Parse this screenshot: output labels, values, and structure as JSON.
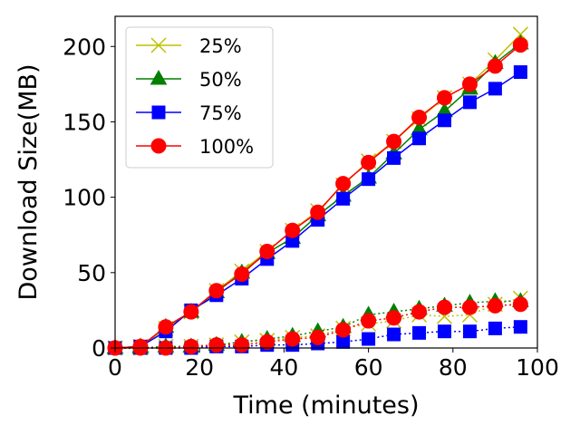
{
  "chart_data": {
    "type": "line",
    "title": "",
    "xlabel": "Time (minutes)",
    "ylabel": "Download Size(MB)",
    "xlim": [
      0,
      100
    ],
    "ylim": [
      0,
      220
    ],
    "xticks": [
      0,
      20,
      40,
      60,
      80,
      100
    ],
    "yticks": [
      0,
      50,
      100,
      150,
      200
    ],
    "grid": false,
    "legend_position": "top-left",
    "x": [
      0,
      6,
      12,
      18,
      24,
      30,
      36,
      42,
      48,
      54,
      60,
      66,
      72,
      78,
      84,
      90,
      96
    ],
    "series": [
      {
        "name": "25%",
        "color": "#bfbf00",
        "marker": "x",
        "values": [
          0,
          1,
          13,
          24,
          38,
          51,
          64,
          78,
          91,
          108,
          124,
          137,
          152,
          166,
          175,
          191,
          208
        ],
        "secondary": [
          0,
          0,
          1,
          1,
          2,
          4,
          5,
          7,
          8,
          13,
          16,
          18,
          22,
          21,
          22,
          29,
          33
        ]
      },
      {
        "name": "50%",
        "color": "#008000",
        "marker": "triangle",
        "values": [
          0,
          1,
          14,
          24,
          37,
          50,
          63,
          73,
          88,
          101,
          113,
          129,
          145,
          157,
          172,
          189,
          202
        ],
        "secondary": [
          0,
          0,
          1,
          1,
          2,
          4,
          6,
          8,
          11,
          14,
          22,
          24,
          26,
          28,
          30,
          31,
          31
        ]
      },
      {
        "name": "75%",
        "color": "#0000ff",
        "marker": "square",
        "values": [
          0,
          1,
          11,
          25,
          35,
          46,
          59,
          71,
          85,
          99,
          112,
          126,
          139,
          151,
          163,
          172,
          183
        ],
        "secondary": [
          0,
          0,
          0,
          0,
          1,
          1,
          2,
          2,
          3,
          4,
          6,
          9,
          10,
          11,
          11,
          13,
          14
        ]
      },
      {
        "name": "100%",
        "color": "#ff0000",
        "marker": "circle",
        "values": [
          0,
          1,
          14,
          24,
          38,
          49,
          64,
          78,
          90,
          109,
          123,
          137,
          153,
          166,
          175,
          187,
          201
        ],
        "secondary": [
          0,
          0,
          0,
          1,
          2,
          2,
          4,
          6,
          7,
          12,
          18,
          20,
          24,
          27,
          27,
          28,
          29
        ]
      }
    ]
  }
}
